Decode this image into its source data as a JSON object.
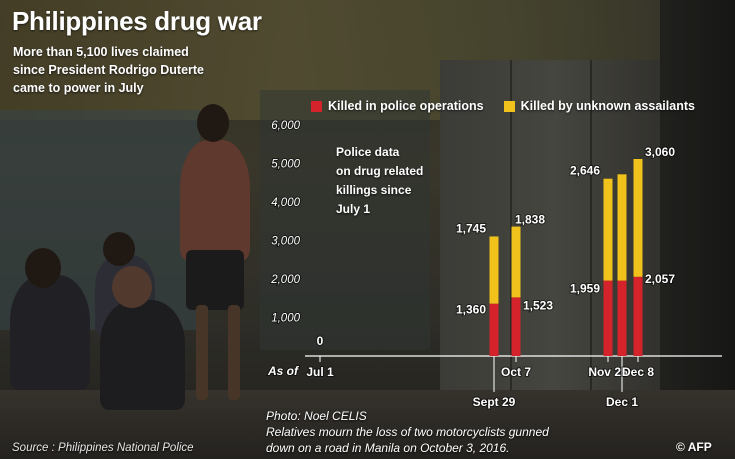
{
  "header": {
    "title": "Philippines drug war",
    "subtitle_lines": [
      "More than 5,100 lives claimed",
      "since President Rodrigo Duterte",
      "came to power in July"
    ]
  },
  "note_lines": [
    "Police data",
    "on drug related",
    "killings since",
    "July 1"
  ],
  "credit_lines": [
    "Photo: Noel CELIS",
    "Relatives mourn the loss of two motorcyclists gunned",
    "down on a road in Manila on October 3, 2016."
  ],
  "source": "Source : Philippines National Police",
  "logo": "© AFP",
  "colors": {
    "police": "#d4232a",
    "unknown": "#f1c21b",
    "axis": "#ffffff"
  },
  "chart_data": {
    "type": "bar",
    "stacked": true,
    "title": "Police data on drug related killings since July 1",
    "y_ticks": [
      "6,000",
      "5,000",
      "4,000",
      "3,000",
      "2,000",
      "1,000"
    ],
    "ylim": [
      0,
      6000
    ],
    "as_of_label": "As of",
    "categories": [
      "Jul 1",
      "Sept 29",
      "Oct 7",
      "Nov 25",
      "Dec 1",
      "Dec 8"
    ],
    "category_label_row": [
      "top",
      "bottom",
      "top",
      "top",
      "bottom",
      "top"
    ],
    "series": [
      {
        "name": "Killed in police operations",
        "values": [
          0,
          1360,
          1523,
          1959,
          1959,
          2057
        ]
      },
      {
        "name": "Killed by unknown assailants",
        "values": [
          0,
          1745,
          1838,
          2646,
          2760,
          3060
        ]
      }
    ],
    "bottom_labels": [
      "0",
      "1,360",
      "1,523",
      "1,959",
      "",
      "2,057"
    ],
    "top_labels": [
      "",
      "1,745",
      "1,838",
      "2,646",
      "",
      "3,060"
    ]
  }
}
